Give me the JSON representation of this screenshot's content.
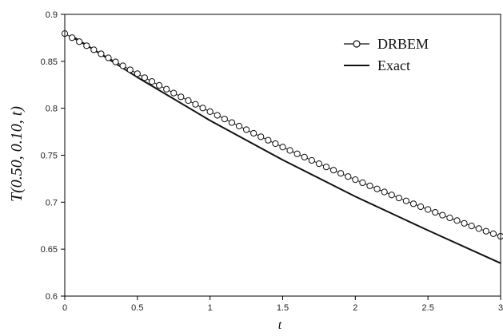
{
  "chart_data": {
    "type": "line",
    "title": "",
    "xlabel": "t",
    "ylabel": "T(0.50, 0.10, t)",
    "xlim": [
      0,
      3
    ],
    "ylim": [
      0.6,
      0.9
    ],
    "x_ticks": [
      "0",
      "0.5",
      "1",
      "1.5",
      "2",
      "2.5",
      "3"
    ],
    "y_ticks": [
      "0.6",
      "0.65",
      "0.7",
      "0.75",
      "0.8",
      "0.85",
      "0.9"
    ],
    "grid": false,
    "legend_position": "top-right",
    "series": [
      {
        "name": "DRBEM",
        "style": "line-with-circle-markers",
        "x": [
          0.0,
          0.05,
          0.1,
          0.15,
          0.2,
          0.25,
          0.3,
          0.35,
          0.4,
          0.45,
          0.5,
          0.55,
          0.6,
          0.65,
          0.7,
          0.75,
          0.8,
          0.85,
          0.9,
          0.95,
          1.0,
          1.05,
          1.1,
          1.15,
          1.2,
          1.25,
          1.3,
          1.35,
          1.4,
          1.45,
          1.5,
          1.55,
          1.6,
          1.65,
          1.7,
          1.75,
          1.8,
          1.85,
          1.9,
          1.95,
          2.0,
          2.05,
          2.1,
          2.15,
          2.2,
          2.25,
          2.3,
          2.35,
          2.4,
          2.45,
          2.5,
          2.55,
          2.6,
          2.65,
          2.7,
          2.75,
          2.8,
          2.85,
          2.9,
          2.95,
          3.0
        ],
        "y": [
          0.8795,
          0.8752,
          0.8709,
          0.8666,
          0.8623,
          0.858,
          0.8537,
          0.8494,
          0.8452,
          0.841,
          0.8368,
          0.8326,
          0.8285,
          0.8244,
          0.8203,
          0.8162,
          0.8122,
          0.8082,
          0.8042,
          0.8003,
          0.7964,
          0.7925,
          0.7886,
          0.7848,
          0.781,
          0.7772,
          0.7734,
          0.7697,
          0.766,
          0.7623,
          0.7587,
          0.7551,
          0.7515,
          0.748,
          0.7445,
          0.741,
          0.7375,
          0.7341,
          0.7307,
          0.7273,
          0.724,
          0.7207,
          0.7174,
          0.7141,
          0.7109,
          0.7077,
          0.7045,
          0.7014,
          0.6983,
          0.6952,
          0.6922,
          0.6892,
          0.6862,
          0.6833,
          0.6804,
          0.6775,
          0.6747,
          0.6719,
          0.6691,
          0.6664,
          0.6637
        ]
      },
      {
        "name": "Exact",
        "style": "solid-line",
        "x": [
          0.05,
          0.5,
          1.0,
          1.5,
          2.0,
          2.5,
          3.0
        ],
        "y": [
          0.877,
          0.833,
          0.787,
          0.745,
          0.706,
          0.67,
          0.635
        ]
      }
    ],
    "colors": {
      "line": "#111111",
      "marker_fill": "#ffffff",
      "axis": "#000000"
    }
  }
}
